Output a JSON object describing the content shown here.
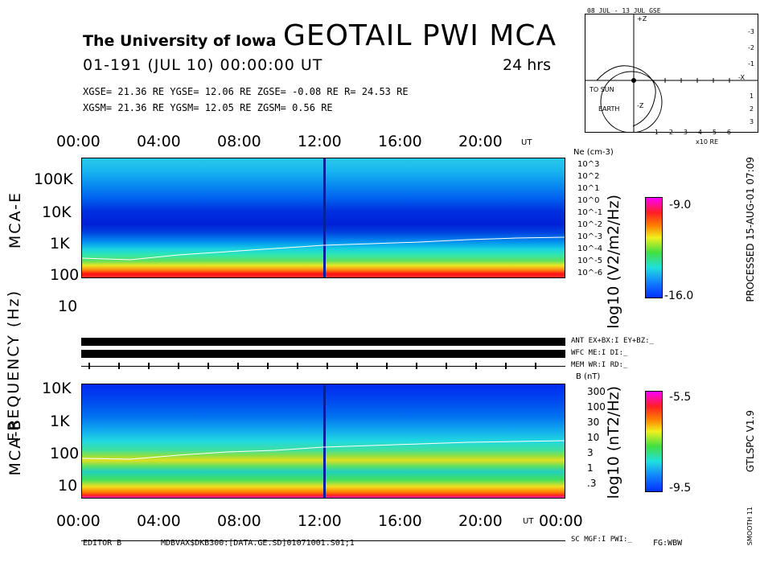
{
  "header": {
    "university": "The University of Iowa",
    "title": "GEOTAIL PWI MCA",
    "date_line": "01-191 (JUL 10) 00:00:00 UT",
    "duration": "24 hrs",
    "gse_line": "XGSE= 21.36 RE  YGSE= 12.06 RE  ZGSE= -0.08 RE  R= 24.53 RE",
    "gsm_line": "XGSM= 21.36 RE  YGSM= 12.05 RE  ZGSM=  0.56 RE"
  },
  "orbit": {
    "title": "08 JUL - 13 JUL  GSE",
    "to_sun": "TO SUN",
    "earth": "EARTH",
    "x_ticks": [
      "-1",
      "-2",
      "-3",
      "-4",
      "-5",
      "-6"
    ],
    "x_unit": "x10 RE",
    "y_ticks_top": [
      "-3",
      "-2",
      "-1"
    ],
    "y_ticks_bottom": [
      "1",
      "2",
      "3"
    ],
    "x_axis": "-X",
    "z_axis": "+Z",
    "z_axis_bottom": "-Z"
  },
  "time_axis": {
    "top_labels": [
      "00:00",
      "04:00",
      "08:00",
      "12:00",
      "16:00",
      "20:00"
    ],
    "bottom_labels": [
      "00:00",
      "04:00",
      "08:00",
      "12:00",
      "16:00",
      "20:00",
      "00:00"
    ],
    "unit": "UT"
  },
  "mca_e": {
    "label": "MCA-E",
    "freq_labels": [
      "100K",
      "10K",
      "1K",
      "100",
      "10"
    ],
    "ne_title": "Ne (cm-3)",
    "ne_labels": [
      "10^3",
      "10^2",
      "10^1",
      "10^0",
      "10^-1",
      "10^-2",
      "10^-3",
      "10^-4",
      "10^-5",
      "10^-6"
    ],
    "cb_label": "log10 (V2/m2/Hz)",
    "cb_max": "-9.0",
    "cb_min": "-16.0"
  },
  "frequency_label": "FREQUENCY (Hz)",
  "status": {
    "ant": "ANT EX+BX:I EY+BZ:_",
    "wfc": "WFC ME:I     DI:_",
    "mem": "MEM WR:I     RD:_",
    "sc": "SC MGF:I   PWI:_"
  },
  "mca_b": {
    "label": "MCA-B",
    "freq_labels": [
      "10K",
      "1K",
      "100",
      "10"
    ],
    "b_title": "B (nT)",
    "b_labels": [
      "300",
      "100",
      "30",
      "10",
      "3",
      "1",
      ".3"
    ],
    "cb_label": "log10 (nT2/Hz)",
    "cb_max": "-5.5",
    "cb_min": "-9.5"
  },
  "side": {
    "processed": "PROCESSED 15-AUG-01  07:09",
    "program": "GTLSPC  V1.9",
    "smooth": "SMOOTH 11"
  },
  "footer": {
    "editor": "EDITOR B",
    "path": "MDBVAX$DKB300:[DATA.GE.SD]01071001.S01;1",
    "fg": "FG:WBW"
  },
  "chart_data": [
    {
      "type": "heatmap",
      "title": "MCA-E",
      "xlabel": "UT",
      "ylabel": "FREQUENCY (Hz)",
      "x": [
        "00:00",
        "04:00",
        "08:00",
        "12:00",
        "16:00",
        "20:00"
      ],
      "y_ticks": [
        "10",
        "100",
        "1K",
        "10K",
        "100K"
      ],
      "colorbar": {
        "label": "log10 (V2/m2/Hz)",
        "range": [
          -16.0,
          -9.0
        ]
      },
      "right_axis": {
        "label": "Ne (cm-3)",
        "range": [
          "10^-6",
          "10^3"
        ]
      }
    },
    {
      "type": "heatmap",
      "title": "MCA-B",
      "xlabel": "UT",
      "ylabel": "FREQUENCY (Hz)",
      "x": [
        "00:00",
        "04:00",
        "08:00",
        "12:00",
        "16:00",
        "20:00",
        "00:00"
      ],
      "y_ticks": [
        "10",
        "100",
        "1K",
        "10K"
      ],
      "colorbar": {
        "label": "log10 (nT2/Hz)",
        "range": [
          -9.5,
          -5.5
        ]
      },
      "right_axis": {
        "label": "B (nT)",
        "range": [
          ".3",
          "300"
        ]
      }
    }
  ]
}
